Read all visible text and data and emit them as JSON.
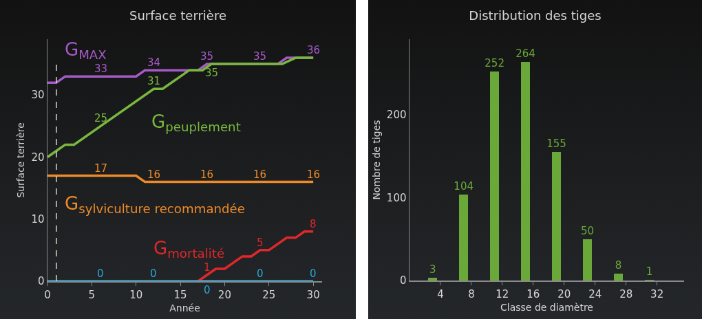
{
  "chart_data": [
    {
      "type": "line",
      "title": "Surface terrière",
      "xlabel": "Année",
      "ylabel": "Surface terrière",
      "xlim": [
        0,
        31
      ],
      "xticks": [
        0,
        5,
        10,
        15,
        20,
        25,
        30
      ],
      "ylim": [
        0,
        39
      ],
      "yticks": [
        0,
        10,
        20,
        30
      ],
      "grid": false,
      "legend": false,
      "marker": "none",
      "line_style": "solid",
      "ref_lines": [
        {
          "axis": "x",
          "value": 1,
          "color": "#d8d8c8",
          "line_style": "dashed"
        }
      ],
      "series": [
        {
          "name": "G$_{MAX}$",
          "color": "#a65ac8",
          "x": [
            0,
            1,
            2,
            6,
            10,
            11,
            12,
            17,
            18,
            24,
            26,
            27,
            30
          ],
          "values": [
            32,
            32,
            33,
            33,
            33,
            34,
            34,
            34,
            35,
            35,
            35,
            36,
            36
          ],
          "value_labels": [
            null,
            null,
            null,
            "33",
            null,
            null,
            "34",
            null,
            "35",
            "35",
            null,
            null,
            "36"
          ]
        },
        {
          "name": "G$_{peuplement}$",
          "color": "#79b83f",
          "x": [
            0,
            1,
            2,
            3,
            6,
            12,
            13,
            16,
            17.5,
            18.5,
            26.5,
            28,
            30
          ],
          "values": [
            20,
            21,
            22,
            22,
            25,
            31,
            31,
            34,
            34,
            35,
            35,
            36,
            36
          ],
          "value_labels": [
            null,
            null,
            null,
            null,
            "25",
            "31",
            null,
            null,
            null,
            "35",
            null,
            null,
            null
          ]
        },
        {
          "name": "G$_{sylviculture recommandée}$",
          "color": "#ef8a2a",
          "x": [
            0,
            6,
            10,
            11,
            12,
            18,
            24,
            30
          ],
          "values": [
            17,
            17,
            17,
            16,
            16,
            16,
            16,
            16
          ],
          "value_labels": [
            null,
            "17",
            null,
            null,
            "16",
            "16",
            "16",
            "16"
          ]
        },
        {
          "name": "G$_{mortalité}$",
          "color": "#e0282a",
          "x": [
            17,
            18,
            19,
            20,
            22,
            23,
            24,
            25,
            27,
            28,
            29,
            30
          ],
          "values": [
            0,
            1,
            2,
            2,
            4,
            4,
            5,
            5,
            7,
            7,
            8,
            8
          ],
          "value_labels": [
            null,
            "1",
            null,
            null,
            null,
            null,
            "5",
            null,
            null,
            null,
            null,
            "8"
          ]
        },
        {
          "color": "#2ca6d8",
          "x": [
            0,
            6,
            12,
            18,
            24,
            30
          ],
          "values": [
            0,
            0,
            0,
            0,
            0,
            0
          ],
          "value_labels": [
            null,
            "0",
            "0",
            "0",
            "0",
            "0"
          ]
        }
      ]
    },
    {
      "type": "bar",
      "title": "Distribution des tiges",
      "xlabel": "Classe de diamètre",
      "ylabel": "Nombre de tiges",
      "x": [
        3,
        7,
        11,
        15,
        19,
        23,
        27,
        31
      ],
      "values": [
        3,
        104,
        252,
        264,
        155,
        50,
        8,
        1
      ],
      "color": "#6aa83a",
      "data_labels": true,
      "xlim": [
        0,
        35.5
      ],
      "xticks": [
        4,
        8,
        12,
        16,
        20,
        24,
        28,
        32
      ],
      "ylim": [
        0,
        291
      ],
      "yticks": [
        0,
        100,
        200
      ],
      "grid": false,
      "legend": false
    }
  ]
}
